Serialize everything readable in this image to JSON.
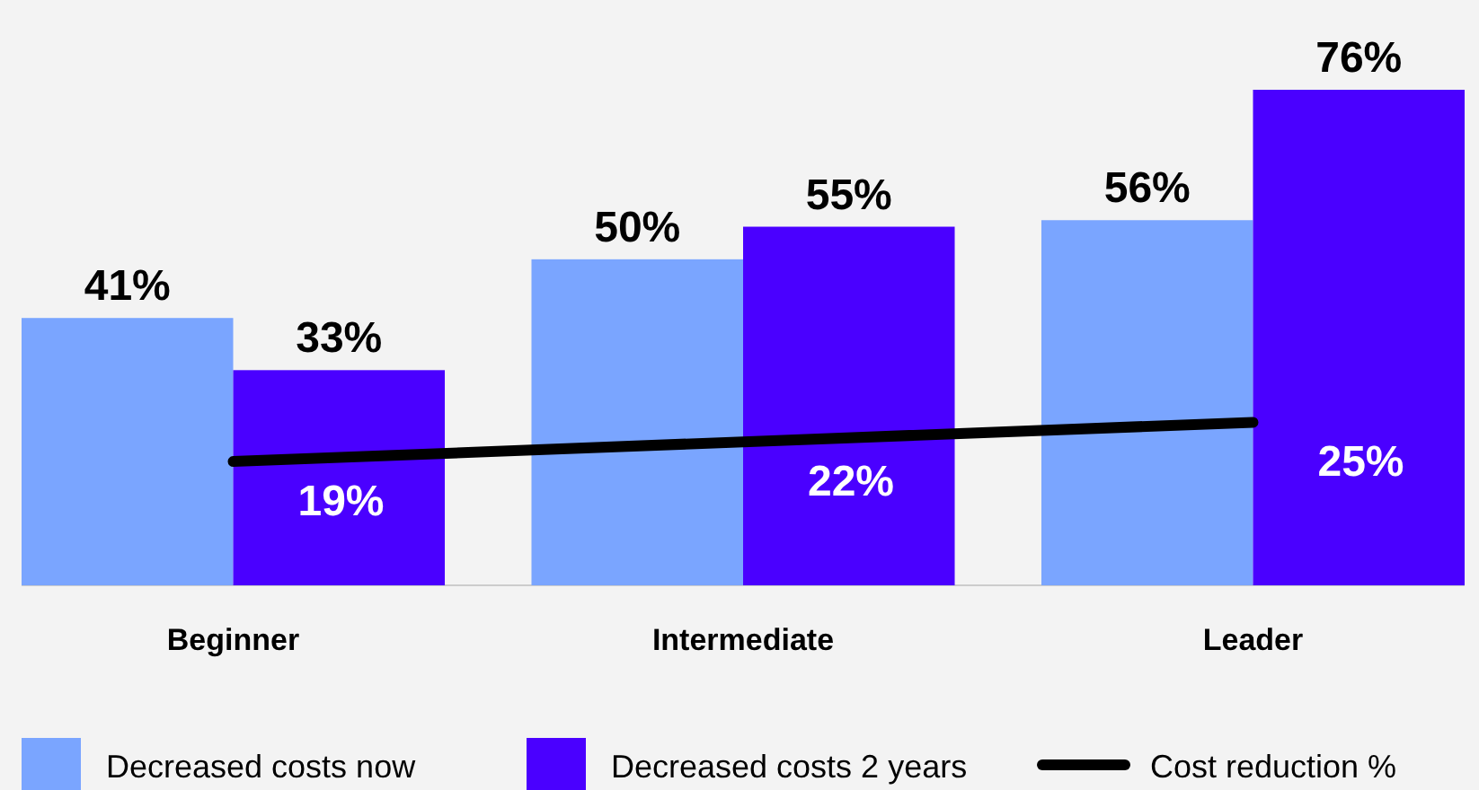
{
  "chart_data": {
    "type": "bar",
    "categories": [
      "Beginner",
      "Intermediate",
      "Leader"
    ],
    "series": [
      {
        "name": "Decreased costs now",
        "color": "#7aa5ff",
        "values": [
          41,
          50,
          56
        ],
        "value_labels": [
          "41%",
          "50%",
          "56%"
        ]
      },
      {
        "name": "Decreased costs 2 years",
        "color": "#4a00ff",
        "values": [
          33,
          55,
          76
        ],
        "value_labels": [
          "33%",
          "55%",
          "76%"
        ]
      },
      {
        "name": "Cost reduction %",
        "type": "line",
        "color": "#000000",
        "values": [
          19,
          22,
          25
        ],
        "value_labels": [
          "19%",
          "22%",
          "25%"
        ]
      }
    ],
    "legend": "bottom"
  }
}
